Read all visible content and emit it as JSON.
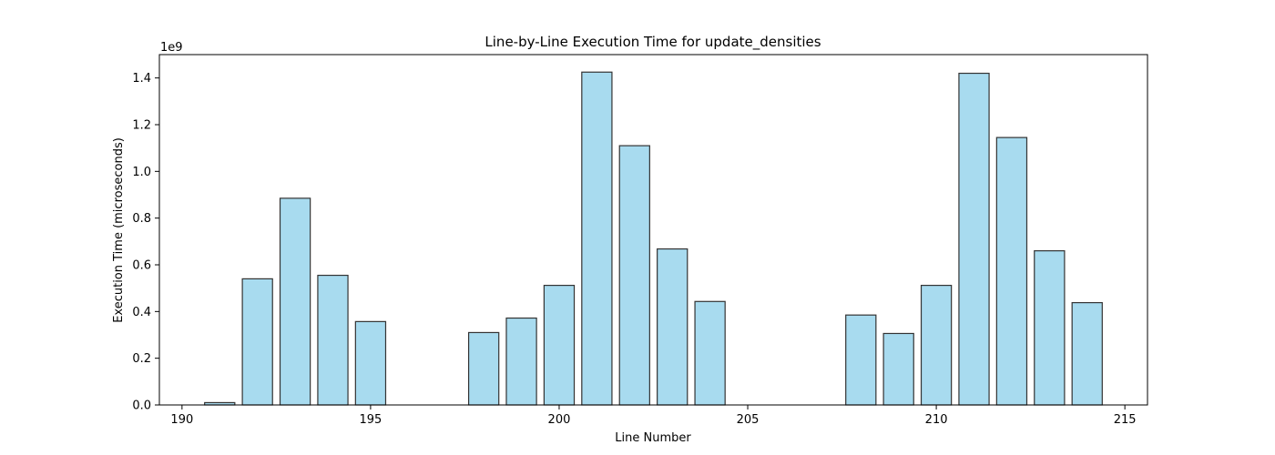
{
  "chart_data": {
    "type": "bar",
    "title": "Line-by-Line Execution Time for update_densities",
    "xlabel": "Line Number",
    "ylabel": "Execution Time (microseconds)",
    "y_offset_label": "1e9",
    "xlim": [
      189.4,
      215.6
    ],
    "ylim": [
      0,
      1.5
    ],
    "x_ticks": [
      190,
      195,
      200,
      205,
      210,
      215
    ],
    "x_tick_labels": [
      "190",
      "195",
      "200",
      "205",
      "210",
      "215"
    ],
    "y_ticks": [
      0,
      0.2,
      0.4,
      0.6,
      0.8,
      1.0,
      1.2,
      1.4
    ],
    "y_tick_labels": [
      "0.0",
      "0.2",
      "0.4",
      "0.6",
      "0.8",
      "1.0",
      "1.2",
      "1.4"
    ],
    "bar_color": "#a8dbef",
    "edge_color": "#333333",
    "bars": [
      {
        "x": 191,
        "value": 0.01
      },
      {
        "x": 192,
        "value": 0.54
      },
      {
        "x": 193,
        "value": 0.885
      },
      {
        "x": 194,
        "value": 0.555
      },
      {
        "x": 195,
        "value": 0.357
      },
      {
        "x": 198,
        "value": 0.31
      },
      {
        "x": 199,
        "value": 0.372
      },
      {
        "x": 200,
        "value": 0.512
      },
      {
        "x": 201,
        "value": 1.425
      },
      {
        "x": 202,
        "value": 1.11
      },
      {
        "x": 203,
        "value": 0.668
      },
      {
        "x": 204,
        "value": 0.443
      },
      {
        "x": 208,
        "value": 0.385
      },
      {
        "x": 209,
        "value": 0.306
      },
      {
        "x": 210,
        "value": 0.512
      },
      {
        "x": 211,
        "value": 1.42
      },
      {
        "x": 212,
        "value": 1.145
      },
      {
        "x": 213,
        "value": 0.66
      },
      {
        "x": 214,
        "value": 0.438
      }
    ],
    "grid": false,
    "legend": "none"
  }
}
